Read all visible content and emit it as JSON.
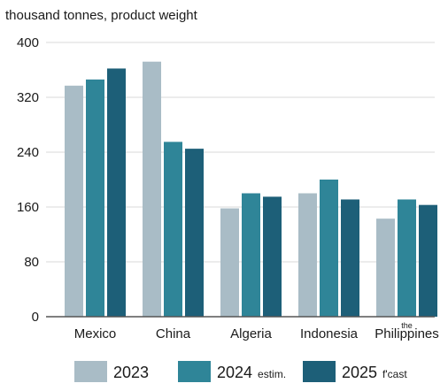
{
  "chart_data": {
    "type": "bar",
    "ylabel": "thousand tonnes, product weight",
    "ylim": [
      0,
      400
    ],
    "yticks": [
      "0",
      "80",
      "160",
      "240",
      "320",
      "400"
    ],
    "grid": true,
    "legend_position": "bottom",
    "categories": [
      {
        "prefix": "",
        "name": "Mexico"
      },
      {
        "prefix": "",
        "name": "China"
      },
      {
        "prefix": "",
        "name": "Algeria"
      },
      {
        "prefix": "",
        "name": "Indonesia"
      },
      {
        "prefix": "the",
        "name": "Philippines"
      }
    ],
    "series": [
      {
        "name": "2023",
        "suffix": "",
        "color": "#a9bcc6",
        "values": [
          337,
          372,
          158,
          180,
          143
        ]
      },
      {
        "name": "2024",
        "suffix": "estim.",
        "color": "#2f8598",
        "values": [
          346,
          255,
          180,
          200,
          171
        ]
      },
      {
        "name": "2025",
        "suffix": "f'cast",
        "color": "#1d5f78",
        "values": [
          362,
          245,
          175,
          171,
          163
        ]
      }
    ]
  }
}
